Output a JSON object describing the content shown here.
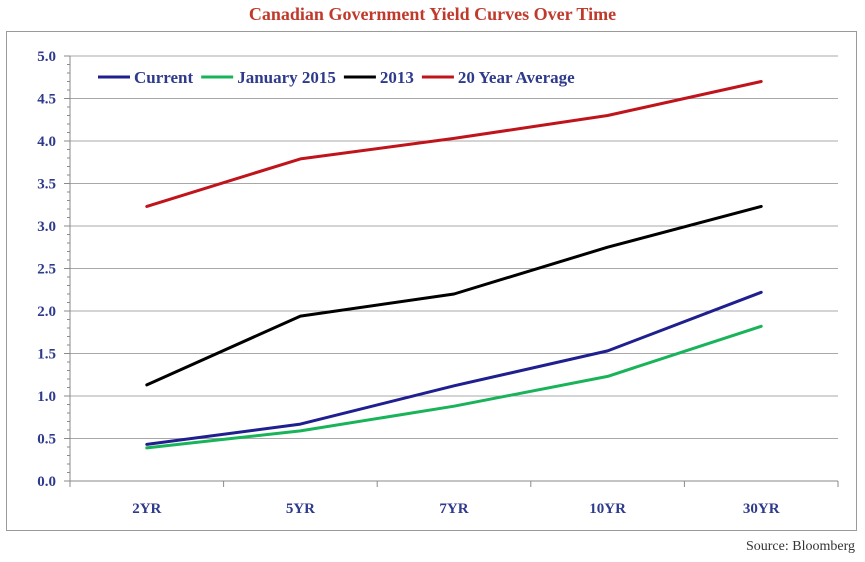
{
  "page": {
    "title": "Canadian Government Yield Curves Over Time",
    "source": "Source: Bloomberg"
  },
  "chart_data": {
    "type": "line",
    "title": "Canadian Government Yield Curves Over Time",
    "xlabel": "",
    "ylabel": "",
    "categories": [
      "2YR",
      "5YR",
      "7YR",
      "10YR",
      "30YR"
    ],
    "ylim": [
      0,
      5
    ],
    "yticks": [
      "0.0",
      "0.5",
      "1.0",
      "1.5",
      "2.0",
      "2.5",
      "3.0",
      "3.5",
      "4.0",
      "4.5",
      "5.0"
    ],
    "grid": true,
    "legend_position": "top-left",
    "series": [
      {
        "name": "Current",
        "color": "#1f1f8f",
        "values": [
          0.43,
          0.67,
          1.12,
          1.53,
          2.22
        ]
      },
      {
        "name": "January 2015",
        "color": "#19b35a",
        "values": [
          0.39,
          0.59,
          0.88,
          1.23,
          1.82
        ]
      },
      {
        "name": "2013",
        "color": "#000000",
        "values": [
          1.13,
          1.94,
          2.2,
          2.75,
          3.23
        ]
      },
      {
        "name": "20 Year Average",
        "color": "#c0141c",
        "values": [
          3.23,
          3.79,
          4.03,
          4.3,
          4.7
        ]
      }
    ]
  }
}
